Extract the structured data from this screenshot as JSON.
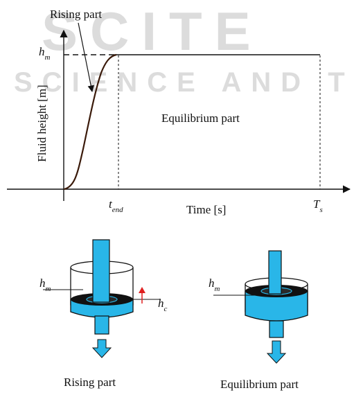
{
  "watermark": {
    "line1": "SCITE",
    "line2": "SCIENCE AND TEC"
  },
  "graph": {
    "ylabel": "Fluid height [m]",
    "xlabel": "Time [s]",
    "hm_main": "h",
    "hm_sub": "m",
    "tend_main": "t",
    "tend_sub": "end",
    "ts_main": "T",
    "ts_sub": "s",
    "rising_label": "Rising part",
    "equilibrium_label": "Equilibrium part"
  },
  "tank_left": {
    "hm_main": "h",
    "hm_sub": "m",
    "hc_main": "h",
    "hc_sub": "c",
    "caption": "Rising part"
  },
  "tank_right": {
    "hm_main": "h",
    "hm_sub": "m",
    "caption": "Equilibrium part"
  },
  "colors": {
    "fluid": "#29b6e8",
    "arrow_up": "#e02020",
    "curve": "#3a1a0a",
    "ink": "#111111"
  }
}
